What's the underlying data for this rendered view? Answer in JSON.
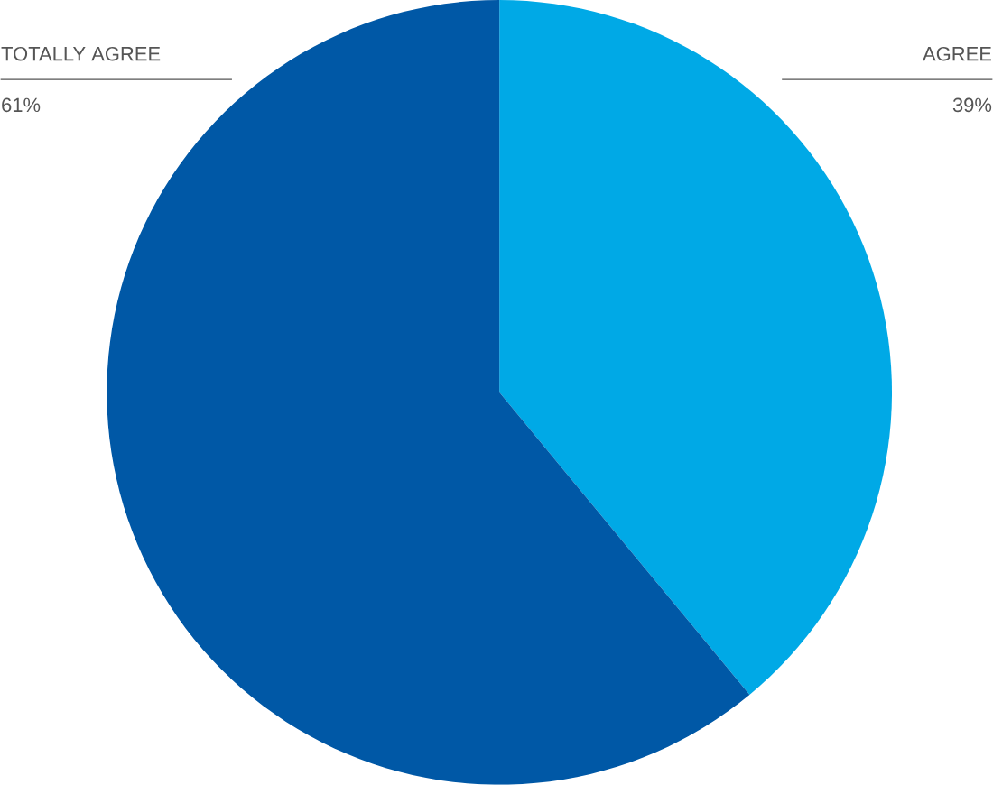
{
  "chart_data": {
    "type": "pie",
    "categories": [
      "AGREE",
      "TOTALLY AGREE"
    ],
    "values": [
      39,
      61
    ],
    "colors": [
      "#00a9e6",
      "#0058a6"
    ],
    "value_labels": [
      "39%",
      "61%"
    ]
  }
}
